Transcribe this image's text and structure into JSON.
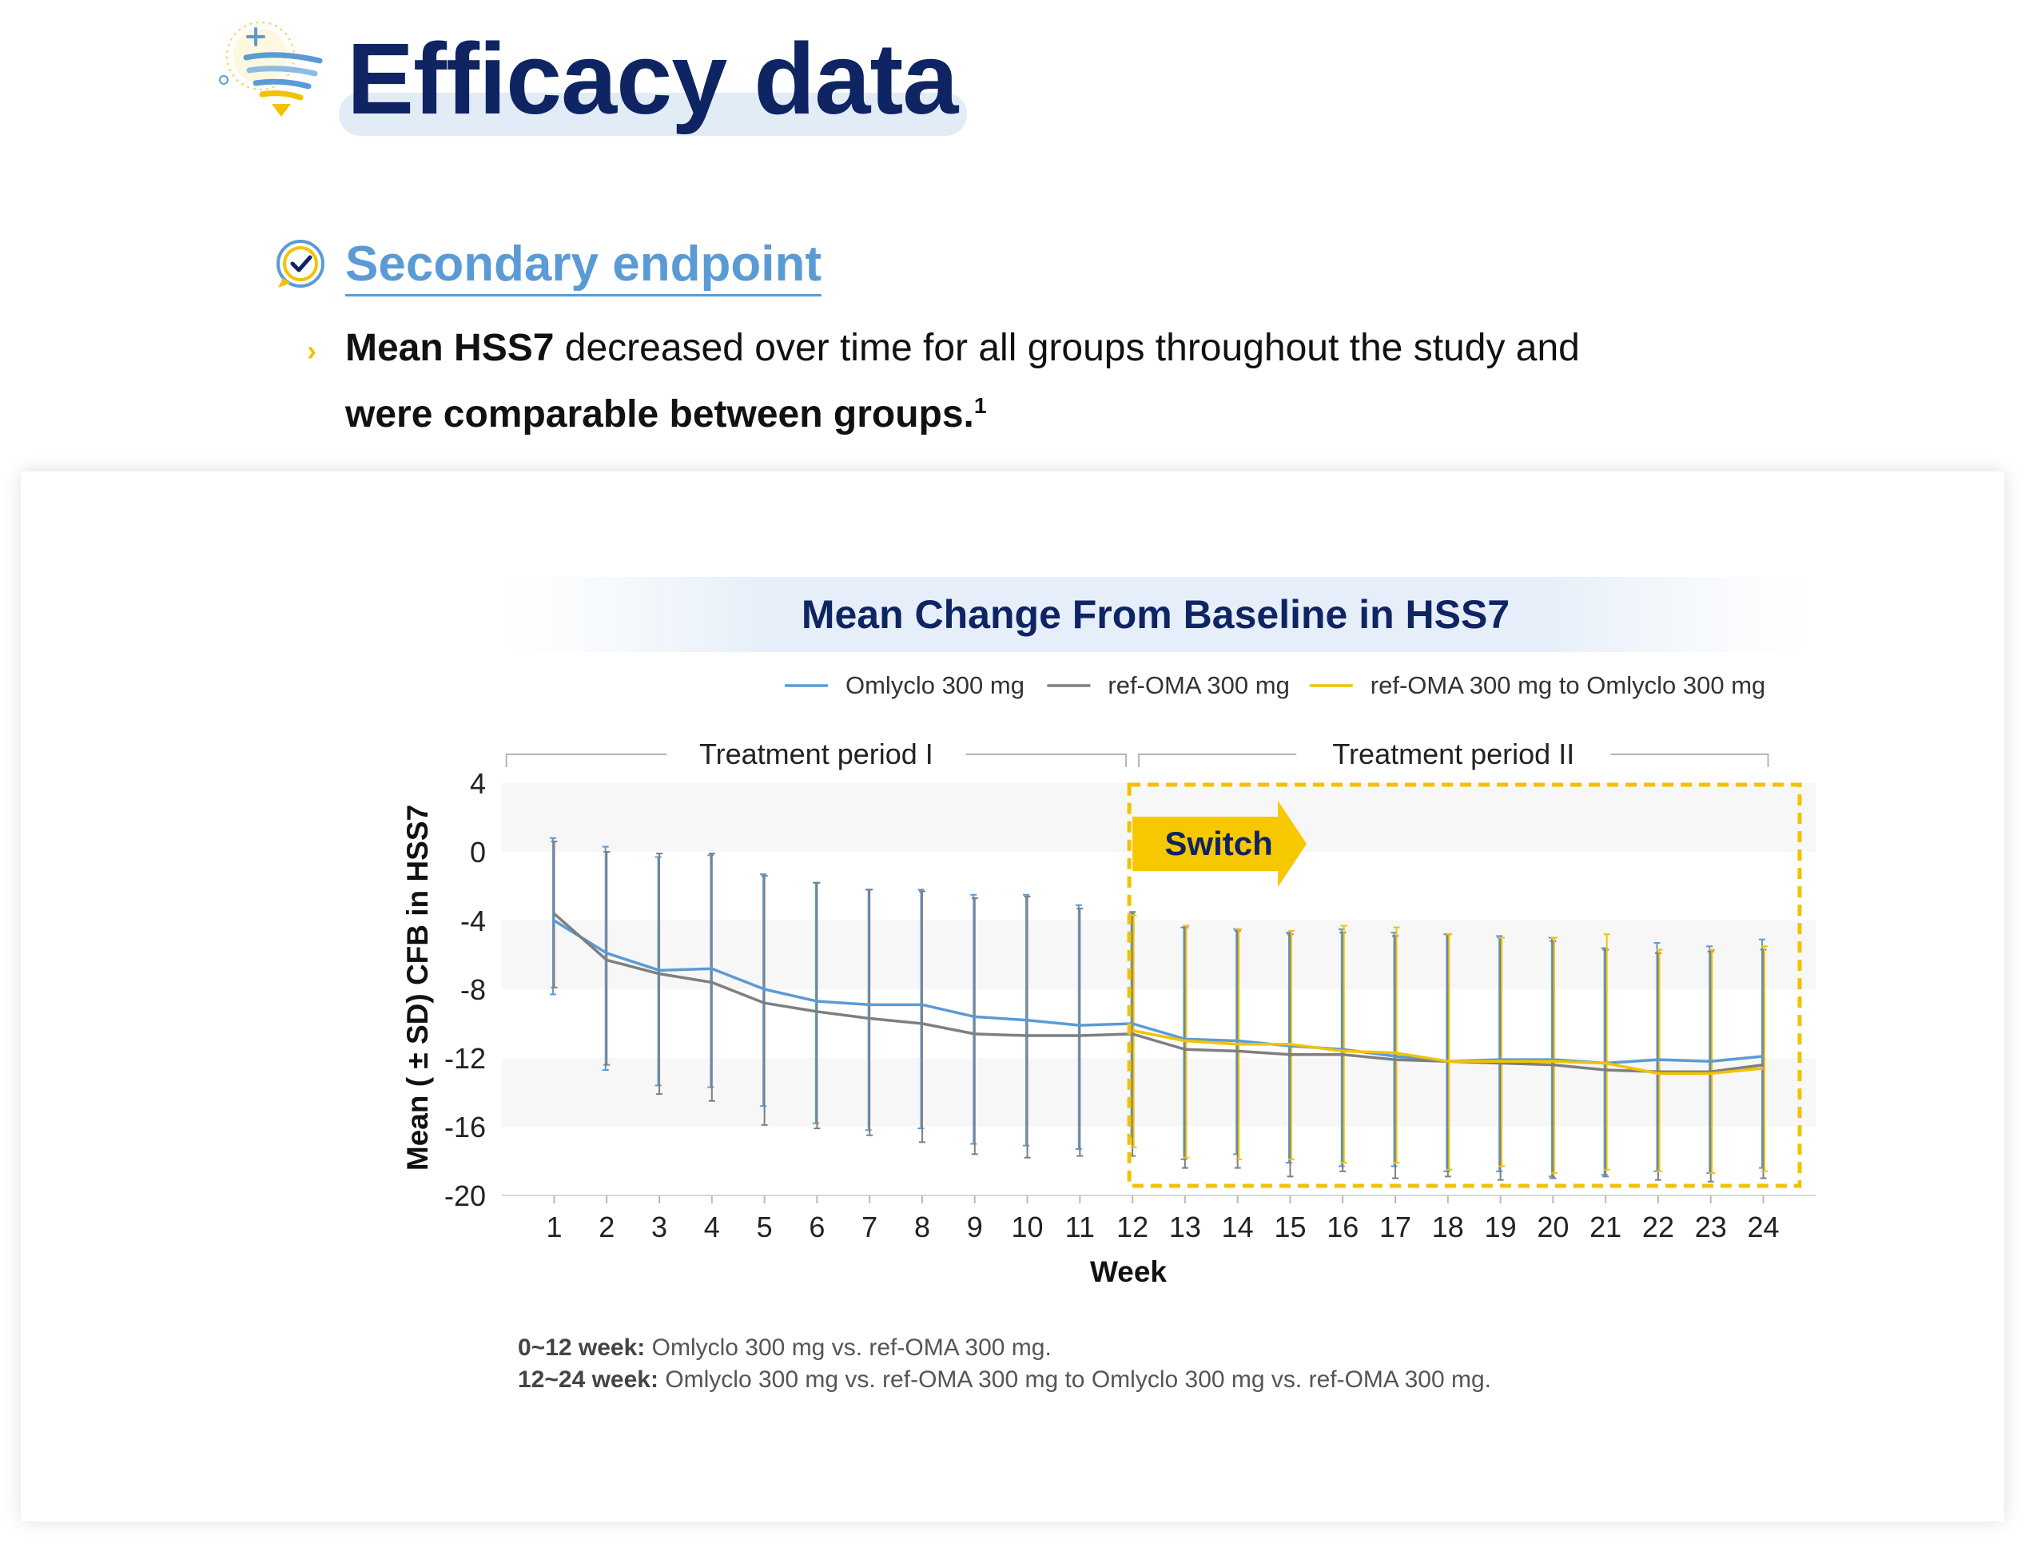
{
  "header": {
    "title": "Efficacy data"
  },
  "section": {
    "heading": "Secondary endpoint",
    "bullet": {
      "part1_bold": "Mean HSS7",
      "part2": " decreased over time for all groups throughout the study and ",
      "part3_bold": "were comparable between groups.",
      "superscript": "1"
    }
  },
  "colors": {
    "brand_navy": "#0f2463",
    "accent_blue": "#5b9bd5",
    "omlyclo": "#5b9bd5",
    "ref_oma": "#7f7f7f",
    "switch_group": "#f2c200"
  },
  "icons": {
    "header": "wind-funnel-icon",
    "section": "check-speech-bubble-icon",
    "bullet": "chevron-right-icon"
  },
  "chart_data": {
    "type": "line",
    "title": "Mean Change From Baseline in HSS7",
    "xlabel": "Week",
    "ylabel": "Mean ( ± SD) CFB in HSS7",
    "x": [
      1,
      2,
      3,
      4,
      5,
      6,
      7,
      8,
      9,
      10,
      11,
      12,
      13,
      14,
      15,
      16,
      17,
      18,
      19,
      20,
      21,
      22,
      23,
      24
    ],
    "ylim": [
      -20,
      4
    ],
    "yticks": [
      4,
      0,
      -4,
      -8,
      -12,
      -16,
      -20
    ],
    "grid": "alternating horizontal bands",
    "legend_position": "top-right",
    "periods": [
      {
        "label": "Treatment period I",
        "from": 0,
        "to": 12
      },
      {
        "label": "Treatment period II",
        "from": 12,
        "to": 24
      }
    ],
    "annotation": {
      "label": "Switch",
      "from_week": 12
    },
    "series": [
      {
        "name": "Omlyclo 300 mg",
        "color": "#5b9bd5",
        "x": [
          1,
          2,
          3,
          4,
          5,
          6,
          7,
          8,
          9,
          10,
          11,
          12,
          13,
          14,
          15,
          16,
          17,
          18,
          19,
          20,
          21,
          22,
          23,
          24
        ],
        "mean": [
          -4.0,
          -5.9,
          -6.9,
          -6.8,
          -8.0,
          -8.7,
          -8.9,
          -8.9,
          -9.6,
          -9.8,
          -10.1,
          -10.0,
          -10.9,
          -11.0,
          -11.3,
          -11.5,
          -11.9,
          -12.2,
          -12.1,
          -12.1,
          -12.3,
          -12.1,
          -12.2,
          -11.9
        ],
        "sd_upper": [
          0.8,
          0.3,
          -0.3,
          -0.2,
          -1.3,
          -1.8,
          -2.2,
          -2.2,
          -2.5,
          -2.5,
          -3.1,
          -3.6,
          -4.4,
          -4.5,
          -4.7,
          -4.5,
          -4.7,
          -4.8,
          -4.9,
          -5.0,
          -5.6,
          -5.3,
          -5.5,
          -5.1
        ],
        "sd_lower": [
          -8.3,
          -12.7,
          -13.6,
          -13.7,
          -14.8,
          -15.8,
          -16.2,
          -16.1,
          -17.0,
          -17.1,
          -17.3,
          -16.6,
          -17.9,
          -17.6,
          -18.1,
          -18.3,
          -18.3,
          -18.6,
          -18.6,
          -18.9,
          -18.8,
          -18.6,
          -18.7,
          -18.4
        ]
      },
      {
        "name": "ref-OMA 300 mg",
        "color": "#7f7f7f",
        "x": [
          1,
          2,
          3,
          4,
          5,
          6,
          7,
          8,
          9,
          10,
          11,
          12,
          13,
          14,
          15,
          16,
          17,
          18,
          19,
          20,
          21,
          22,
          23,
          24
        ],
        "mean": [
          -3.6,
          -6.3,
          -7.1,
          -7.6,
          -8.8,
          -9.3,
          -9.7,
          -10.0,
          -10.6,
          -10.7,
          -10.7,
          -10.6,
          -11.5,
          -11.6,
          -11.8,
          -11.8,
          -12.1,
          -12.2,
          -12.3,
          -12.4,
          -12.7,
          -12.8,
          -12.8,
          -12.4
        ],
        "sd_upper": [
          0.6,
          0.0,
          -0.1,
          -0.1,
          -1.4,
          -1.8,
          -2.2,
          -2.3,
          -2.7,
          -2.6,
          -3.3,
          -3.5,
          -4.4,
          -4.6,
          -4.8,
          -4.7,
          -4.9,
          -4.8,
          -5.0,
          -5.2,
          -5.7,
          -5.9,
          -5.8,
          -5.7
        ],
        "sd_lower": [
          -7.9,
          -12.4,
          -14.1,
          -14.5,
          -15.9,
          -16.1,
          -16.5,
          -16.9,
          -17.6,
          -17.8,
          -17.7,
          -17.7,
          -18.4,
          -18.4,
          -18.9,
          -18.6,
          -19.0,
          -18.9,
          -19.1,
          -19.0,
          -18.9,
          -19.1,
          -19.2,
          -19.0
        ]
      },
      {
        "name": "ref-OMA 300 mg to Omlyclo 300 mg",
        "color": "#f2c200",
        "x": [
          12,
          13,
          14,
          15,
          16,
          17,
          18,
          19,
          20,
          21,
          22,
          23,
          24
        ],
        "mean": [
          -10.4,
          -11.0,
          -11.2,
          -11.2,
          -11.6,
          -11.7,
          -12.2,
          -12.2,
          -12.2,
          -12.3,
          -12.9,
          -12.9,
          -12.6
        ],
        "sd_upper": [
          -3.7,
          -4.3,
          -4.5,
          -4.6,
          -4.3,
          -4.4,
          -4.8,
          -5.0,
          -5.0,
          -4.8,
          -5.7,
          -5.7,
          -5.5
        ],
        "sd_lower": [
          -17.2,
          -17.8,
          -17.9,
          -17.9,
          -18.1,
          -18.1,
          -18.5,
          -18.3,
          -18.7,
          -18.5,
          -18.6,
          -18.7,
          -18.6
        ]
      }
    ],
    "footnotes": [
      {
        "label": "0~12 week:",
        "text": " Omlyclo 300 mg vs. ref-OMA 300 mg."
      },
      {
        "label": "12~24 week:",
        "text": " Omlyclo 300 mg vs. ref-OMA 300 mg to Omlyclo 300 mg vs. ref-OMA 300 mg."
      }
    ]
  }
}
